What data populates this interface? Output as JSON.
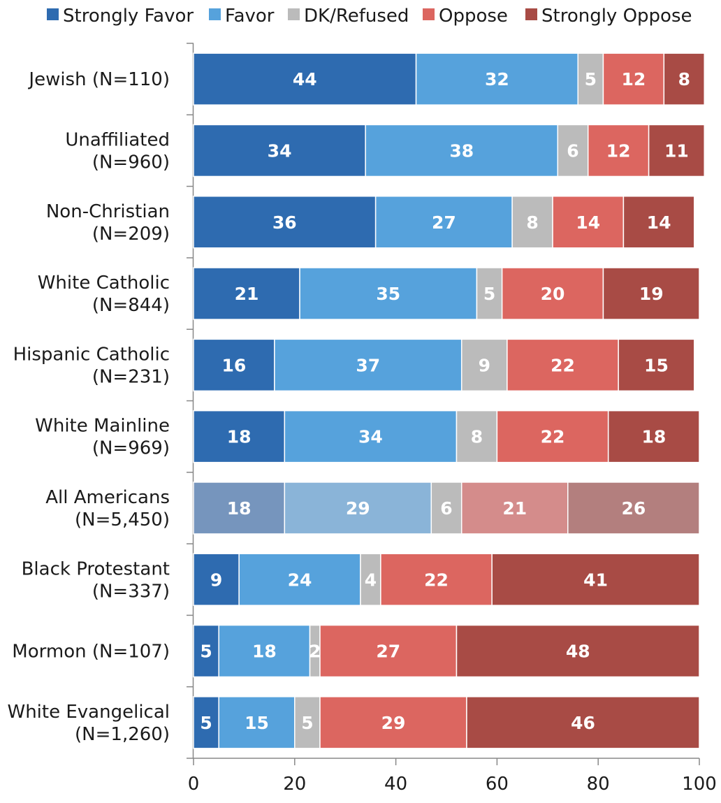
{
  "chart_data": {
    "type": "bar",
    "orientation": "horizontal",
    "stacked": true,
    "legend_position": "top",
    "legend": [
      "Strongly Favor",
      "Favor",
      "DK/Refused",
      "Oppose",
      "Strongly Oppose"
    ],
    "colors": [
      "#2e6bb0",
      "#56a2dc",
      "#bbbbbb",
      "#dc6660",
      "#a84b45"
    ],
    "highlight_colors": [
      "#7695bd",
      "#8ab4d8",
      "#bbbbbb",
      "#d48c8b",
      "#b37f7e"
    ],
    "highlight_category_index": 6,
    "categories": [
      [
        "Jewish (N=110)"
      ],
      [
        "Unaffiliated",
        "(N=960)"
      ],
      [
        "Non-Christian",
        "(N=209)"
      ],
      [
        "White Catholic",
        "(N=844)"
      ],
      [
        "Hispanic Catholic",
        "(N=231)"
      ],
      [
        "White Mainline",
        "(N=969)"
      ],
      [
        "All Americans",
        "(N=5,450)"
      ],
      [
        "Black Protestant",
        "(N=337)"
      ],
      [
        "Mormon (N=107)"
      ],
      [
        "White Evangelical",
        "(N=1,260)"
      ]
    ],
    "series": [
      {
        "name": "Strongly Favor",
        "values": [
          44,
          34,
          36,
          21,
          16,
          18,
          18,
          9,
          5,
          5
        ]
      },
      {
        "name": "Favor",
        "values": [
          32,
          38,
          27,
          35,
          37,
          34,
          29,
          24,
          18,
          15
        ]
      },
      {
        "name": "DK/Refused",
        "values": [
          5,
          6,
          8,
          5,
          9,
          8,
          6,
          4,
          2,
          5
        ]
      },
      {
        "name": "Oppose",
        "values": [
          12,
          12,
          14,
          20,
          22,
          22,
          21,
          22,
          27,
          29
        ]
      },
      {
        "name": "Strongly Oppose",
        "values": [
          8,
          11,
          14,
          19,
          15,
          18,
          26,
          41,
          48,
          46
        ]
      }
    ],
    "xlim": [
      0,
      100
    ],
    "xticks": [
      "0",
      "20",
      "40",
      "60",
      "80",
      "100"
    ],
    "grid": false
  }
}
